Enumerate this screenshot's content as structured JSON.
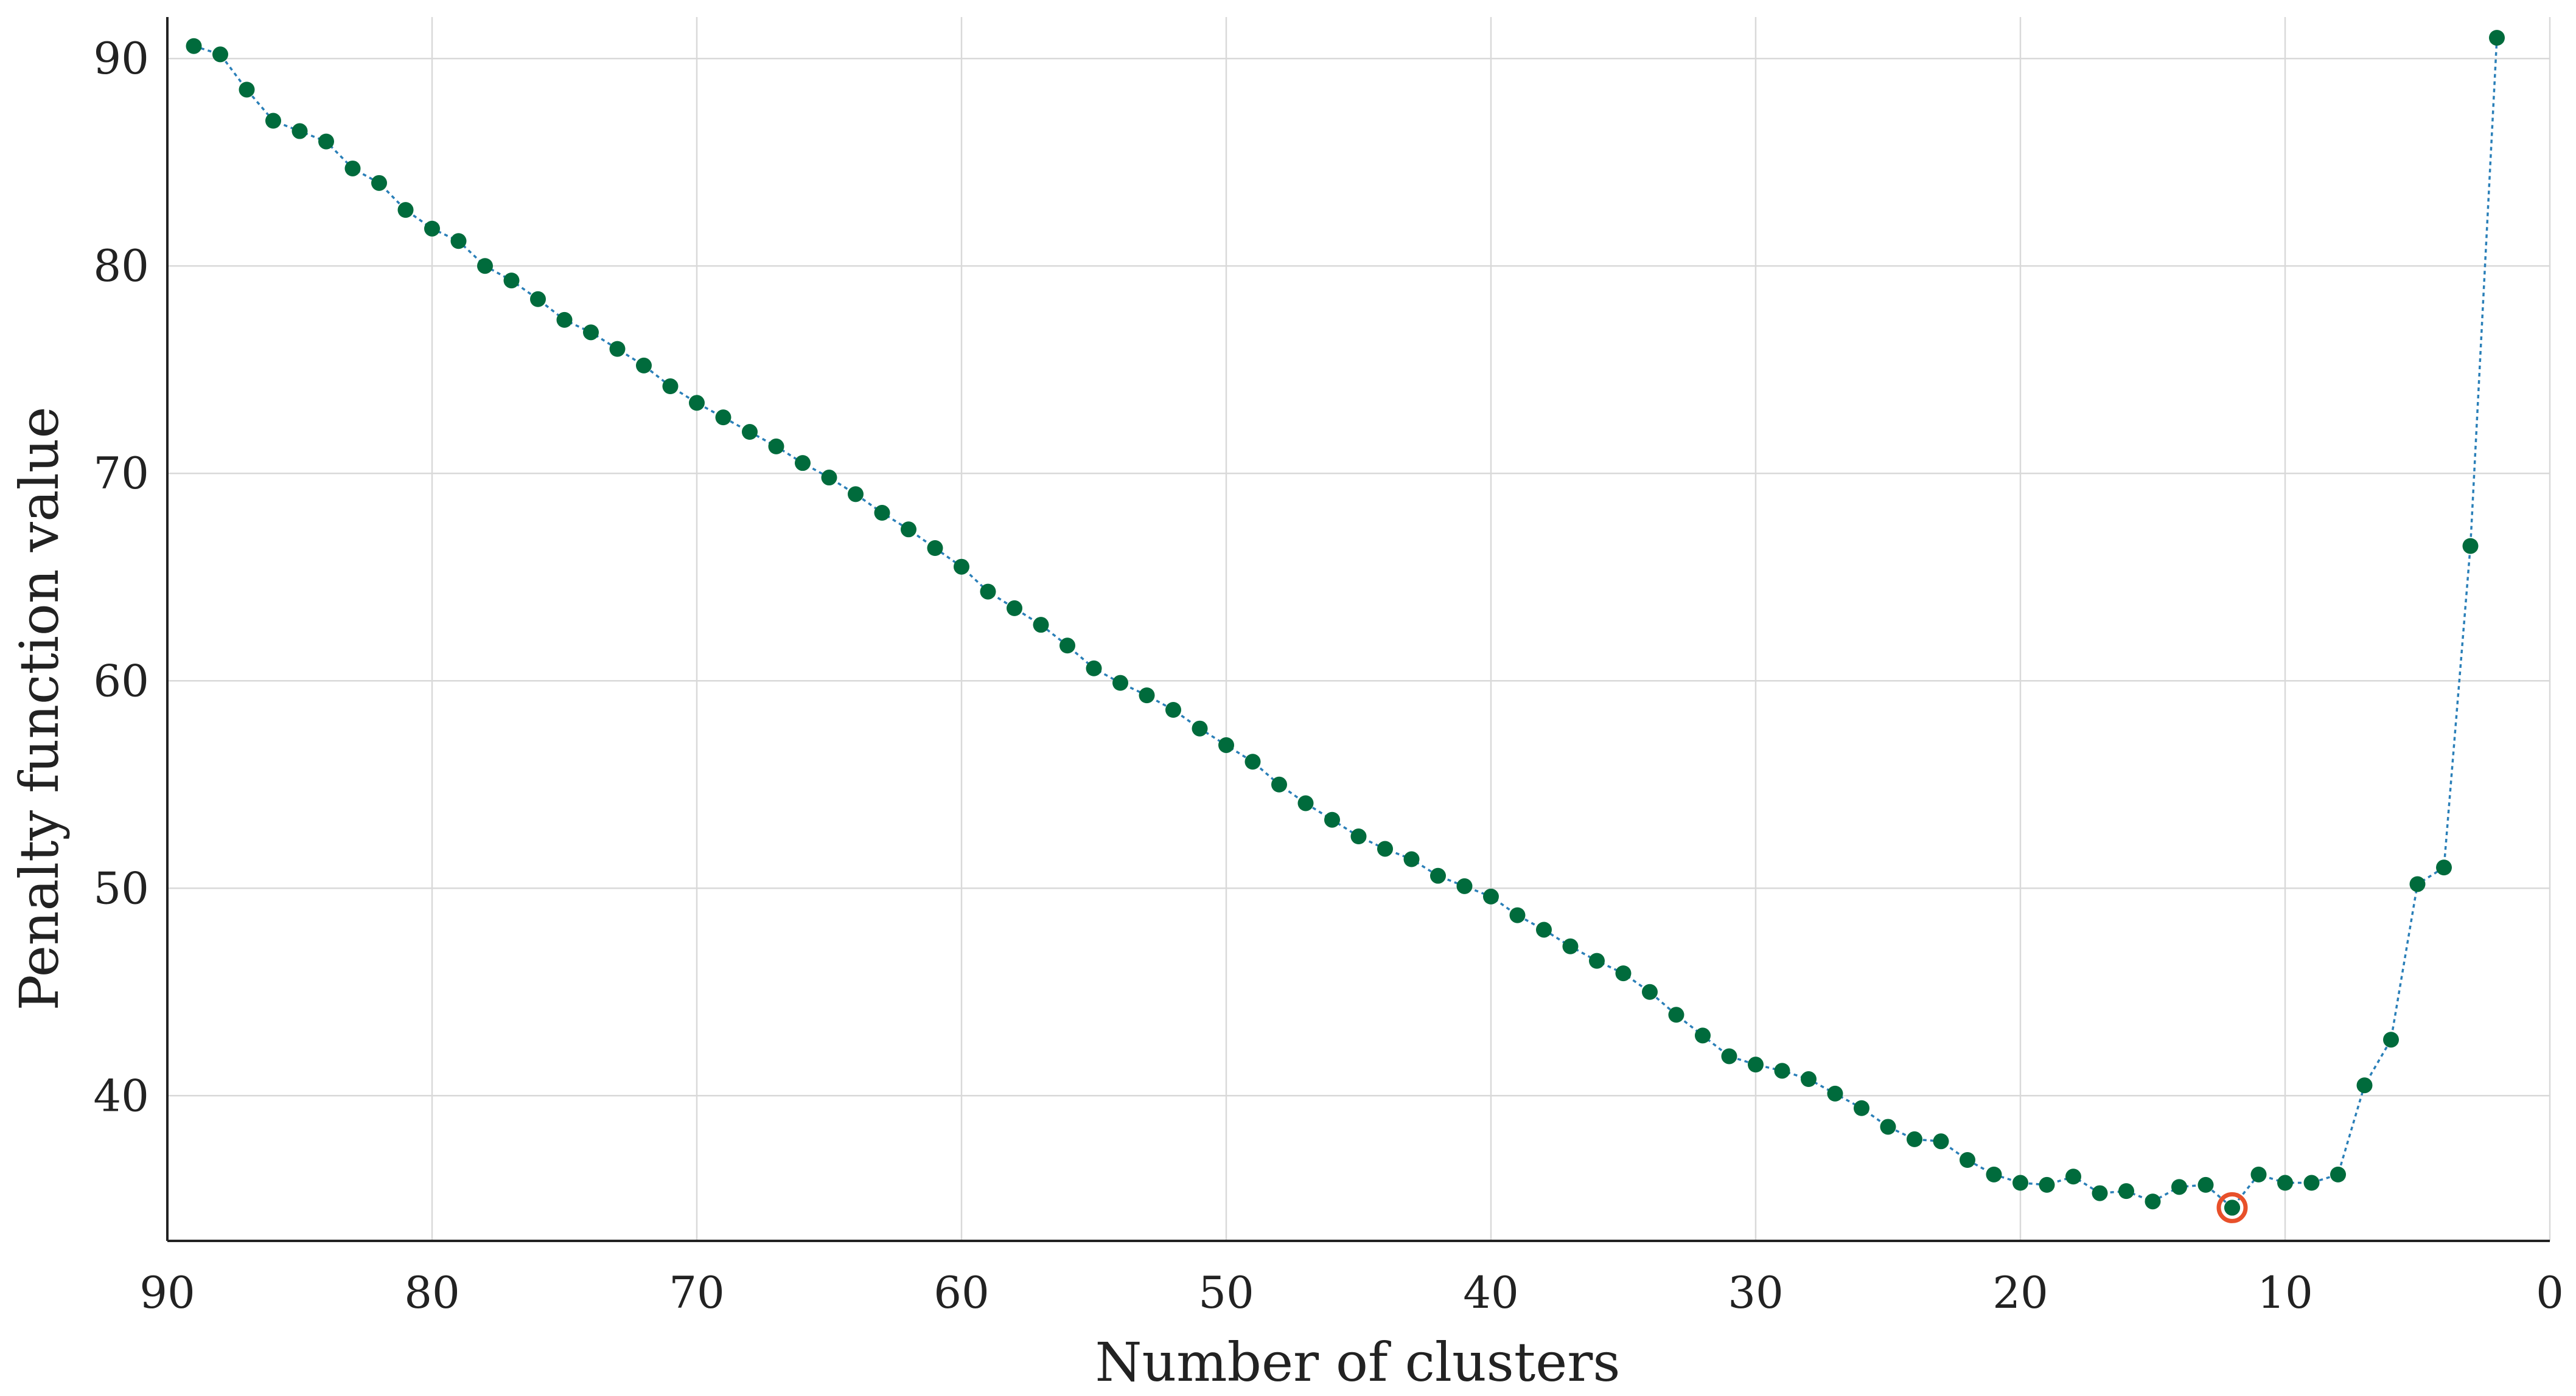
{
  "chart_data": {
    "type": "line",
    "title": "",
    "xlabel": "Number of clusters",
    "ylabel": "Penalty function value",
    "xlim": [
      90,
      0
    ],
    "ylim": [
      33,
      92
    ],
    "x_reversed": true,
    "grid": true,
    "xticks": [
      90,
      80,
      70,
      60,
      50,
      40,
      30,
      20,
      10,
      0
    ],
    "yticks": [
      40,
      50,
      60,
      70,
      80,
      90
    ],
    "colors": {
      "line": "#2a7fb8",
      "marker": "#006b3c",
      "highlight": "#e8502a"
    },
    "series": [
      {
        "x": [
          89,
          88,
          87,
          86,
          85,
          84,
          83,
          82,
          81,
          80,
          79,
          78,
          77,
          76,
          75,
          74,
          73,
          72,
          71,
          70,
          69,
          68,
          67,
          66,
          65,
          64,
          63,
          62,
          61,
          60,
          59,
          58,
          57,
          56,
          55,
          54,
          53,
          52,
          51,
          50,
          49,
          48,
          47,
          46,
          45,
          44,
          43,
          42,
          41,
          40,
          39,
          38,
          37,
          36,
          35,
          34,
          33,
          32,
          31,
          30,
          29,
          28,
          27,
          26,
          25,
          24,
          23,
          22,
          21,
          20,
          19,
          18,
          17,
          16,
          15,
          14,
          13,
          12,
          11,
          10,
          9,
          8,
          7,
          6,
          5,
          4,
          3,
          2
        ],
        "y": [
          90.6,
          90.2,
          88.5,
          87.0,
          86.5,
          86.0,
          84.7,
          84.0,
          82.7,
          81.8,
          81.2,
          80.0,
          79.3,
          78.4,
          77.4,
          76.8,
          76.0,
          75.2,
          74.2,
          73.4,
          72.7,
          72.0,
          71.3,
          70.5,
          69.8,
          69.0,
          68.1,
          67.3,
          66.4,
          65.5,
          64.3,
          63.5,
          62.7,
          61.7,
          60.6,
          59.9,
          59.3,
          58.6,
          57.7,
          56.9,
          56.1,
          55.0,
          54.1,
          53.3,
          52.5,
          51.9,
          51.4,
          50.6,
          50.1,
          49.6,
          48.7,
          48.0,
          47.2,
          46.5,
          45.9,
          45.0,
          43.9,
          42.9,
          41.9,
          41.5,
          41.2,
          40.8,
          40.1,
          39.4,
          38.5,
          37.9,
          37.8,
          36.9,
          36.2,
          35.8,
          35.7,
          36.1,
          35.3,
          35.4,
          34.9,
          35.6,
          35.7,
          34.6,
          36.2,
          35.8,
          35.8,
          36.2,
          40.5,
          42.7,
          50.2,
          51.0,
          66.5,
          91.0
        ]
      }
    ],
    "highlight_point": {
      "x": 12,
      "y": 34.6
    }
  }
}
